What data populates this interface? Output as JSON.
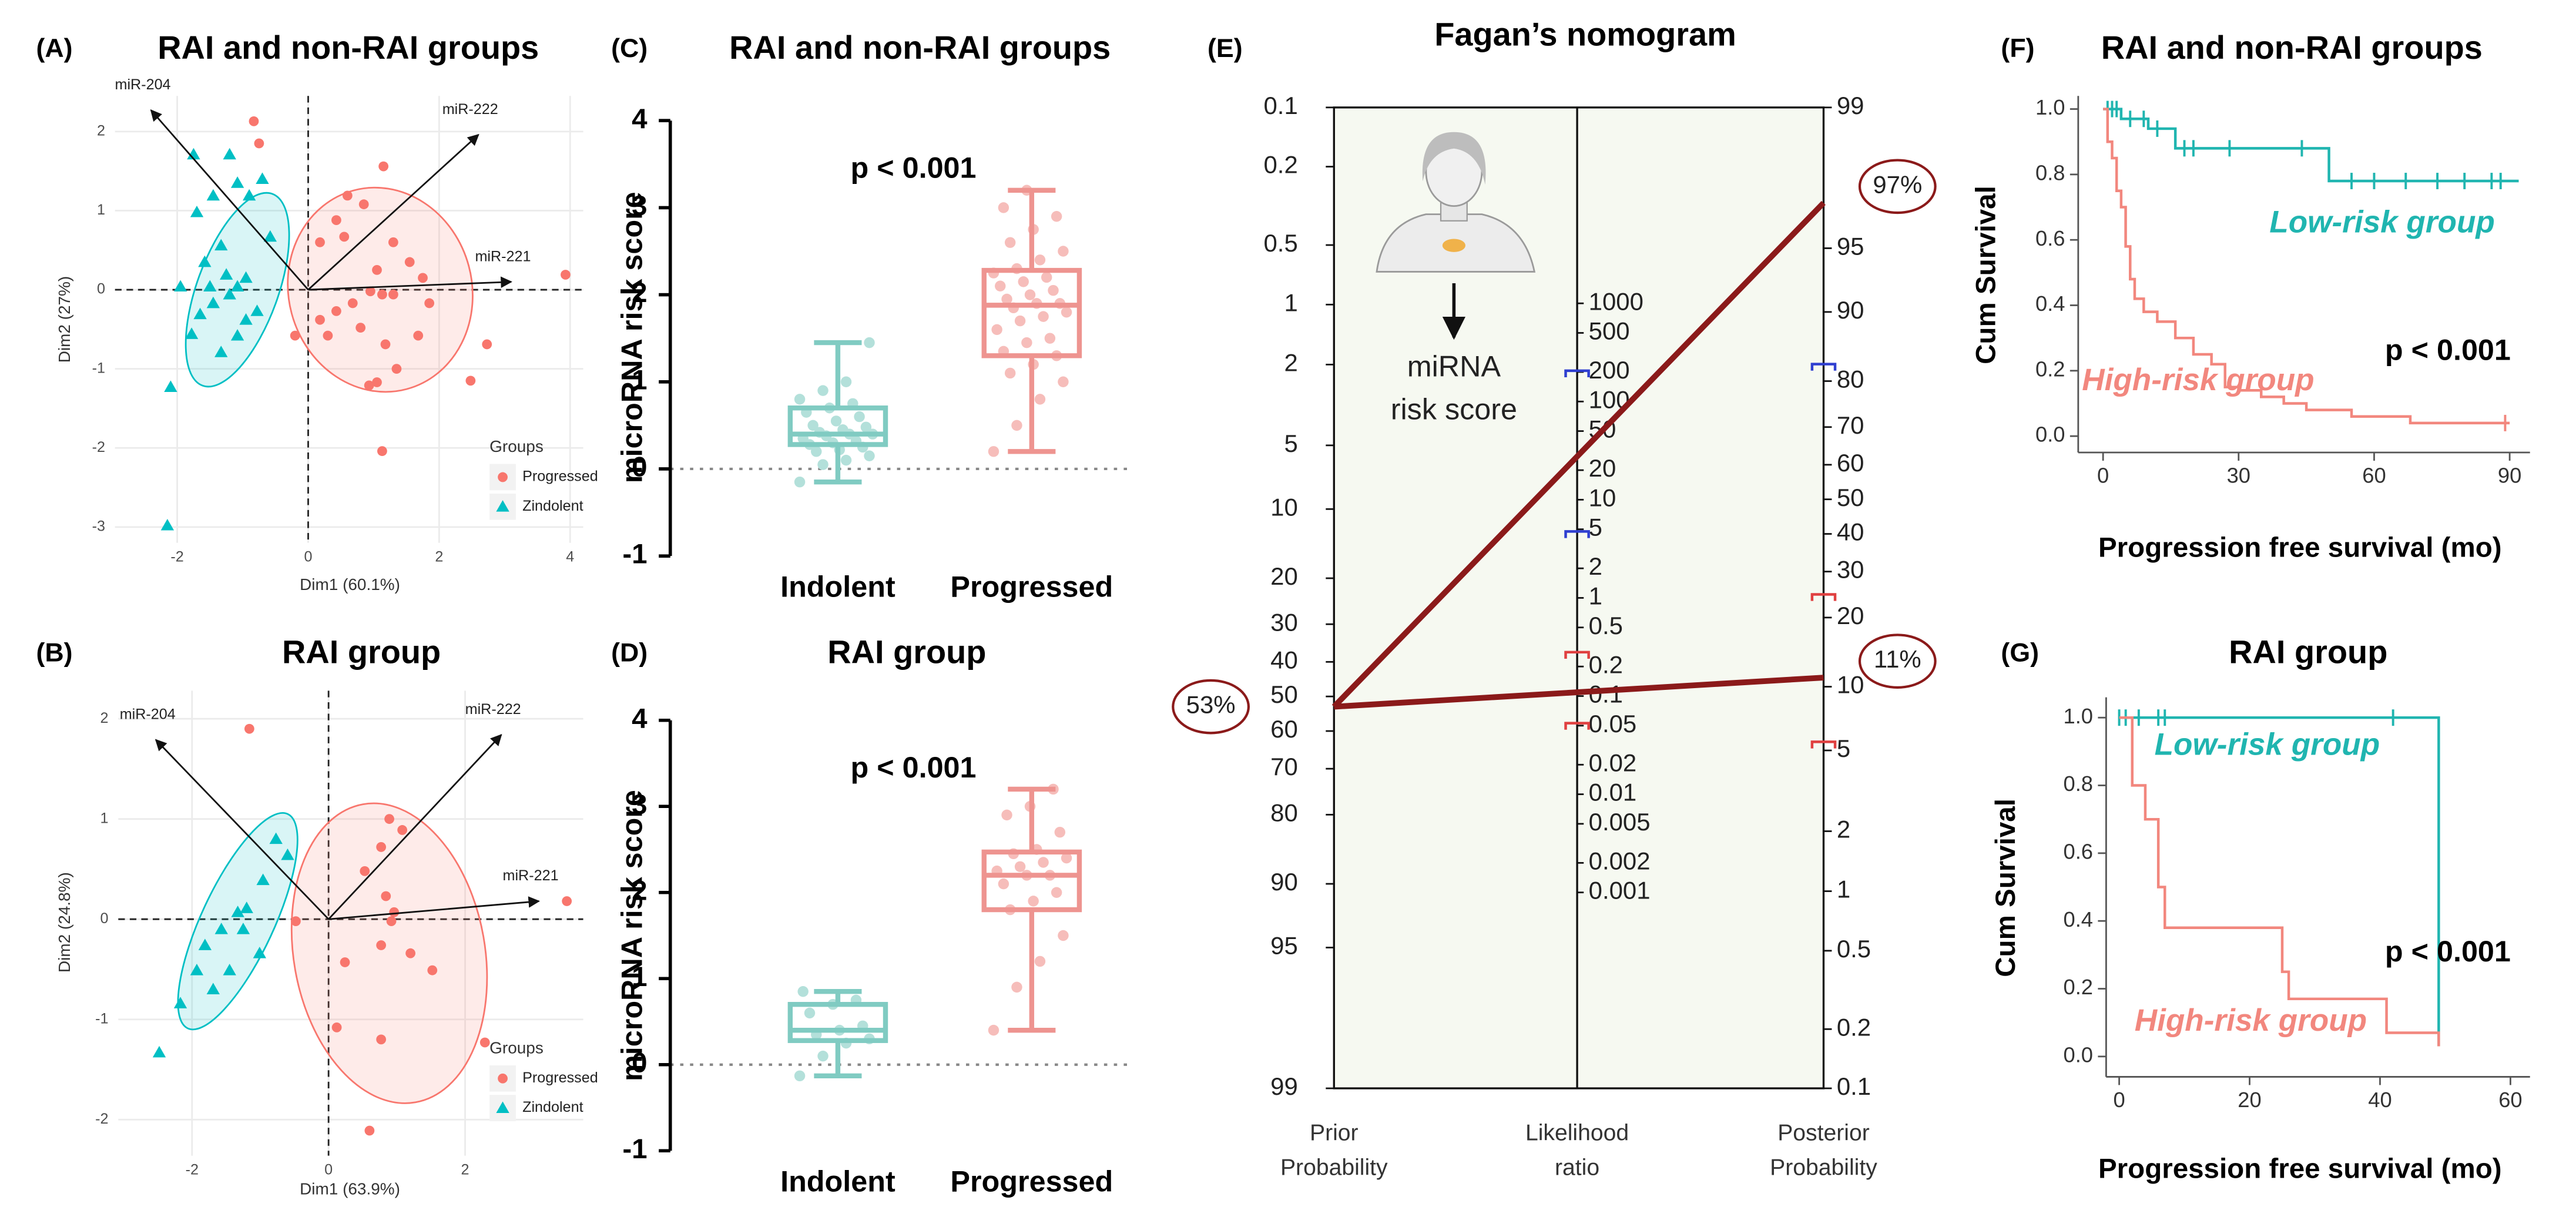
{
  "chart_data": [
    {
      "type": "biplot",
      "panel": "(A)",
      "title": "RAI and non-RAI groups",
      "x_label": "Dim1 (60.1%)",
      "y_label": "Dim2 (27%)",
      "xlim": [
        -2.95,
        4.2
      ],
      "ylim": [
        -3.2,
        2.45
      ],
      "xticks": [
        -2,
        0,
        2,
        4
      ],
      "yticks": [
        -3,
        -2,
        -1,
        0,
        1,
        2
      ],
      "legend_title": "Groups",
      "series": [
        {
          "name": "Progressed",
          "color": "#f8766d",
          "marker": "circle",
          "ellipse": {
            "cx": 1.1,
            "cy": 0,
            "rx": 1.4,
            "ry": 1.3,
            "angle": -15
          },
          "x": [
            -0.83,
            -0.75,
            1.15,
            0.6,
            0.85,
            0.43,
            0.55,
            0.18,
            1.3,
            1.55,
            1.05,
            0.95,
            1.13,
            1.3,
            1.75,
            1.85,
            0.68,
            0.43,
            0.18,
            0.3,
            0.8,
            1.18,
            1.68,
            1.35,
            1.05,
            0.93,
            2.48,
            2.73,
            1.13,
            3.93,
            -0.2
          ],
          "values": [
            2.13,
            1.85,
            1.56,
            1.19,
            1.08,
            0.88,
            0.67,
            0.6,
            0.6,
            0.35,
            0.25,
            -0.02,
            -0.06,
            -0.06,
            0.15,
            -0.17,
            -0.17,
            -0.27,
            -0.38,
            -0.58,
            -0.48,
            -0.69,
            -0.58,
            -1.0,
            -1.17,
            -1.21,
            -1.15,
            -0.69,
            -2.04,
            0.19,
            -0.58
          ]
        },
        {
          "name": "Zindolent",
          "color": "#00bfc4",
          "marker": "triangle",
          "ellipse": {
            "cx": -1.08,
            "cy": 0,
            "rx": 0.62,
            "ry": 1.29,
            "angle": 20
          },
          "x": [
            -2.15,
            -2.1,
            -1.78,
            -1.65,
            -1.45,
            -1.2,
            -1.08,
            -0.95,
            -1.25,
            -1.58,
            -1.33,
            -1.7,
            -1.45,
            -1.08,
            -1.2,
            -1.75,
            -0.7,
            -0.58,
            -0.78,
            -1.08,
            -1.33,
            -0.95,
            -1.5,
            -1.95,
            -0.9
          ],
          "values": [
            -2.98,
            -1.23,
            -0.56,
            -0.31,
            -0.17,
            -0.06,
            0.04,
            0.15,
            0.19,
            0.35,
            0.56,
            0.98,
            1.19,
            1.35,
            1.71,
            1.71,
            1.4,
            0.67,
            -0.27,
            -0.58,
            -0.79,
            -0.38,
            0.04,
            0.04,
            1.19
          ]
        }
      ],
      "loadings": [
        {
          "name": "miR-204",
          "x": -2.4,
          "y": 2.27
        },
        {
          "name": "miR-222",
          "x": 2.6,
          "y": 1.96
        },
        {
          "name": "miR-221",
          "x": 3.1,
          "y": 0.1
        }
      ]
    },
    {
      "type": "biplot",
      "panel": "(B)",
      "title": "RAI group",
      "x_label": "Dim1 (63.9%)",
      "y_label": "Dim2 (24.8%)",
      "xlim": [
        -3.08,
        3.73
      ],
      "ylim": [
        -2.36,
        2.28
      ],
      "xticks": [
        -2,
        0,
        2
      ],
      "yticks": [
        -2,
        -1,
        0,
        1,
        2
      ],
      "legend_title": "Groups",
      "series": [
        {
          "name": "Progressed",
          "color": "#f8766d",
          "marker": "circle",
          "ellipse": {
            "cx": 0.89,
            "cy": -0.34,
            "rx": 1.4,
            "ry": 1.51,
            "angle": -10
          },
          "x": [
            -1.16,
            0.89,
            0.77,
            1.08,
            0.53,
            0.84,
            0.96,
            0.92,
            0.77,
            1.2,
            0.24,
            0.12,
            0.77,
            2.29,
            0.6,
            3.49,
            1.52,
            -0.48
          ],
          "values": [
            1.9,
            1.0,
            0.72,
            0.89,
            0.48,
            0.23,
            0.07,
            -0.02,
            -0.26,
            -0.34,
            -0.43,
            -1.08,
            -1.2,
            -1.23,
            -2.11,
            0.18,
            -0.51,
            -0.02
          ]
        },
        {
          "name": "Zindolent",
          "color": "#00bfc4",
          "marker": "triangle",
          "ellipse": {
            "cx": -1.33,
            "cy": -0.02,
            "rx": 0.53,
            "ry": 1.18,
            "angle": 25
          },
          "x": [
            -2.48,
            -1.69,
            -1.45,
            -1.33,
            -1.2,
            -0.96,
            -0.77,
            -1.81,
            -1.57,
            -1.93,
            -1.01,
            -2.17,
            -0.6,
            -1.25
          ],
          "values": [
            -1.33,
            -0.7,
            -0.51,
            0.07,
            0.11,
            0.39,
            0.8,
            -0.26,
            -0.1,
            -0.51,
            -0.34,
            -0.84,
            0.64,
            -0.1
          ]
        }
      ],
      "loadings": [
        {
          "name": "miR-204",
          "x": -2.53,
          "y": 1.79
        },
        {
          "name": "miR-222",
          "x": 2.53,
          "y": 1.84
        },
        {
          "name": "miR-221",
          "x": 3.08,
          "y": 0.18
        }
      ]
    },
    {
      "type": "box",
      "panel": "(C)",
      "title": "RAI and non-RAI groups",
      "y_label": "microRNA risk score",
      "annotation": "p < 0.001",
      "ylim": [
        -1,
        4
      ],
      "yticks": [
        -1,
        0,
        1,
        2,
        3,
        4
      ],
      "categories": [
        "Indolent",
        "Progressed"
      ],
      "boxes": [
        {
          "color": "#80cbc2",
          "point_color": "#b3e0da",
          "min": -0.15,
          "q1": 0.28,
          "median": 0.4,
          "q3": 0.7,
          "max": 1.45,
          "points": [
            -0.15,
            0.05,
            0.1,
            0.15,
            0.2,
            0.22,
            0.25,
            0.28,
            0.3,
            0.32,
            0.35,
            0.38,
            0.4,
            0.4,
            0.42,
            0.45,
            0.48,
            0.5,
            0.55,
            0.6,
            0.65,
            0.7,
            0.75,
            0.8,
            0.9,
            1.0,
            1.45
          ]
        },
        {
          "color": "#ee9490",
          "point_color": "#f6bdba",
          "min": 0.2,
          "q1": 1.3,
          "median": 1.88,
          "q3": 2.28,
          "max": 3.2,
          "points": [
            0.2,
            0.5,
            0.8,
            1.0,
            1.1,
            1.2,
            1.3,
            1.35,
            1.45,
            1.5,
            1.6,
            1.7,
            1.75,
            1.8,
            1.85,
            1.9,
            1.9,
            1.95,
            2.0,
            2.05,
            2.1,
            2.15,
            2.2,
            2.25,
            2.3,
            2.4,
            2.5,
            2.6,
            2.75,
            2.9,
            3.0,
            3.2
          ]
        }
      ]
    },
    {
      "type": "box",
      "panel": "(D)",
      "title": "RAI group",
      "y_label": "microRNA risk score",
      "annotation": "p < 0.001",
      "ylim": [
        -1,
        4
      ],
      "yticks": [
        -1,
        0,
        1,
        2,
        3,
        4
      ],
      "categories": [
        "Indolent",
        "Progressed"
      ],
      "boxes": [
        {
          "color": "#80cbc2",
          "point_color": "#b3e0da",
          "min": -0.13,
          "q1": 0.28,
          "median": 0.4,
          "q3": 0.7,
          "max": 0.85,
          "points": [
            -0.13,
            0.1,
            0.25,
            0.3,
            0.35,
            0.4,
            0.45,
            0.6,
            0.7,
            0.75,
            0.85
          ]
        },
        {
          "color": "#ee9490",
          "point_color": "#f6bdba",
          "min": 0.4,
          "q1": 1.8,
          "median": 2.2,
          "q3": 2.47,
          "max": 3.2,
          "points": [
            0.4,
            0.9,
            1.2,
            1.5,
            1.8,
            1.9,
            2.0,
            2.1,
            2.2,
            2.2,
            2.25,
            2.3,
            2.35,
            2.4,
            2.45,
            2.5,
            2.7,
            2.9,
            3.0,
            3.2
          ]
        }
      ]
    },
    {
      "type": "nomogram",
      "panel": "(E)",
      "title": "Fagan’s nomogram",
      "prior_ticks": [
        0.1,
        0.2,
        0.5,
        1,
        2,
        5,
        10,
        20,
        30,
        40,
        50,
        60,
        70,
        80,
        90,
        95,
        99
      ],
      "lr_ticks": [
        1000,
        500,
        200,
        100,
        50,
        20,
        10,
        5,
        2,
        1,
        0.5,
        0.2,
        0.1,
        0.05,
        0.02,
        0.01,
        0.005,
        0.002,
        0.001
      ],
      "posterior_ticks": [
        99,
        95,
        90,
        80,
        70,
        60,
        50,
        40,
        30,
        20,
        10,
        5,
        2,
        1,
        0.5,
        0.2,
        0.1
      ],
      "prior": 53,
      "prior_label": "53%",
      "posteriors": [
        97,
        11
      ],
      "posterior_labels": [
        "97%",
        "11%"
      ],
      "line_color": "#8b1a1a",
      "ci_marks": [
        {
          "axis": "lr",
          "value": 206,
          "color": "#2f3fd0"
        },
        {
          "axis": "lr",
          "value": 4.75,
          "color": "#2f3fd0"
        },
        {
          "axis": "posterior",
          "value": 83,
          "color": "#2f3fd0"
        },
        {
          "axis": "lr",
          "value": 0.28,
          "color": "#e04040"
        },
        {
          "axis": "lr",
          "value": 0.053,
          "color": "#e04040"
        },
        {
          "axis": "posterior",
          "value": 24.7,
          "color": "#e04040"
        },
        {
          "axis": "posterior",
          "value": 5.5,
          "color": "#e04040"
        }
      ],
      "axis_labels": [
        [
          "Prior",
          "Probability"
        ],
        [
          "Likelihood",
          "ratio"
        ],
        [
          "Posterior",
          "Probability"
        ]
      ],
      "icon_text": [
        "miRNA",
        "risk score"
      ]
    },
    {
      "type": "survival",
      "panel": "(F)",
      "title": "RAI and non-RAI groups",
      "x_label": "Progression free survival (mo)",
      "y_label": "Cum Survival",
      "annotation": "p < 0.001",
      "xlim": [
        -5.5,
        94.5
      ],
      "ylim": [
        -0.05,
        1.04
      ],
      "xticks": [
        0,
        30,
        60,
        90
      ],
      "yticks": [
        {
          "value": 0,
          "label": "0.0"
        },
        0.2,
        0.4,
        0.6,
        0.8,
        {
          "value": 1,
          "label": "1.0"
        }
      ],
      "series": [
        {
          "name": "Low-risk group",
          "color": "#20b5b0",
          "x": [
            0,
            4,
            10,
            16,
            50,
            92
          ],
          "values": [
            1,
            0.97,
            0.94,
            0.88,
            0.78,
            0.78
          ],
          "censor_x": [
            1,
            2,
            3,
            6,
            9,
            12,
            18,
            20,
            28,
            44,
            55,
            60,
            67,
            74,
            80,
            86,
            88
          ]
        },
        {
          "name": "High-risk group",
          "color": "#f2877e",
          "x": [
            0,
            1,
            2,
            3,
            4,
            5,
            6,
            7,
            9,
            12,
            16,
            20,
            24,
            27,
            30,
            35,
            40,
            45,
            55,
            68,
            90
          ],
          "values": [
            1,
            0.9,
            0.85,
            0.75,
            0.7,
            0.58,
            0.48,
            0.42,
            0.38,
            0.35,
            0.3,
            0.25,
            0.22,
            0.15,
            0.14,
            0.12,
            0.1,
            0.08,
            0.06,
            0.04,
            0.04
          ],
          "censor_x": [
            89
          ]
        }
      ]
    },
    {
      "type": "survival",
      "panel": "(G)",
      "title": "RAI group",
      "x_label": "Progression free survival (mo)",
      "y_label": "Cum Survival",
      "annotation": "p < 0.001",
      "xlim": [
        -2,
        63
      ],
      "ylim": [
        -0.06,
        1.06
      ],
      "xticks": [
        0,
        20,
        40,
        60
      ],
      "yticks": [
        {
          "value": 0,
          "label": "0.0"
        },
        0.2,
        0.4,
        0.6,
        0.8,
        {
          "value": 1,
          "label": "1.0"
        }
      ],
      "series": [
        {
          "name": "Low-risk group",
          "color": "#20b5b0",
          "x": [
            0,
            49
          ],
          "values": [
            1,
            0.03
          ],
          "censor_x": [
            0,
            1,
            3,
            6,
            7,
            42
          ]
        },
        {
          "name": "High-risk group",
          "color": "#f2877e",
          "x": [
            0,
            2,
            4,
            6,
            7,
            25,
            26,
            41,
            49
          ],
          "values": [
            1,
            0.8,
            0.7,
            0.5,
            0.38,
            0.25,
            0.17,
            0.07,
            0.03
          ],
          "censor_x": []
        }
      ]
    }
  ]
}
